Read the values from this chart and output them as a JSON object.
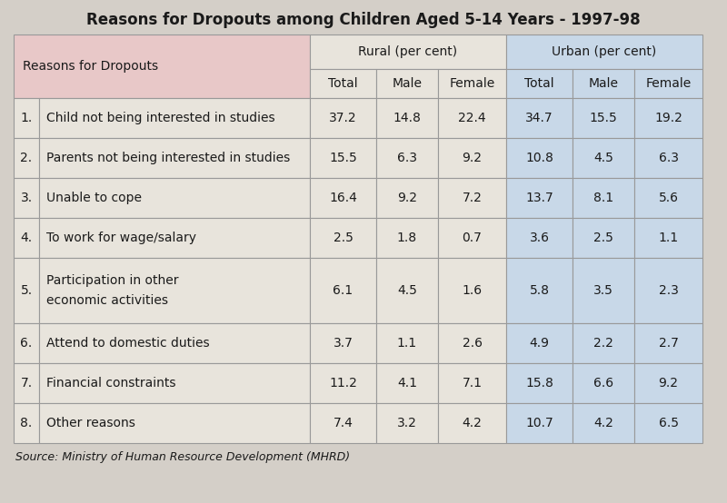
{
  "title": "Reasons for Dropouts among Children Aged 5-14 Years - 1997-98",
  "source": "Source: Ministry of Human Resource Development (MHRD)",
  "rows": [
    [
      "1.",
      "Child not being interested in studies",
      "37.2",
      "14.8",
      "22.4",
      "34.7",
      "15.5",
      "19.2"
    ],
    [
      "2.",
      "Parents not being interested in studies",
      "15.5",
      "6.3",
      "9.2",
      "10.8",
      "4.5",
      "6.3"
    ],
    [
      "3.",
      "Unable to cope",
      "16.4",
      "9.2",
      "7.2",
      "13.7",
      "8.1",
      "5.6"
    ],
    [
      "4.",
      "To work for wage/salary",
      "2.5",
      "1.8",
      "0.7",
      "3.6",
      "2.5",
      "1.1"
    ],
    [
      "5.",
      "Participation in other\neconomic activities",
      "6.1",
      "4.5",
      "1.6",
      "5.8",
      "3.5",
      "2.3"
    ],
    [
      "6.",
      "Attend to domestic duties",
      "3.7",
      "1.1",
      "2.6",
      "4.9",
      "2.2",
      "2.7"
    ],
    [
      "7.",
      "Financial constraints",
      "11.2",
      "4.1",
      "7.1",
      "15.8",
      "6.6",
      "9.2"
    ],
    [
      "8.",
      "Other reasons",
      "7.4",
      "3.2",
      "4.2",
      "10.7",
      "4.2",
      "6.5"
    ]
  ],
  "bg_color": "#d4cfc8",
  "table_bg": "#e8e4dc",
  "header_reasons_bg": "#e8c8c8",
  "header_rural_bg": "#e8e4dc",
  "header_urban_bg": "#c8d8e8",
  "data_row_bg": "#e8e4dc",
  "border_color": "#999999",
  "title_fontsize": 12,
  "header_fontsize": 10,
  "cell_fontsize": 10,
  "source_fontsize": 9
}
